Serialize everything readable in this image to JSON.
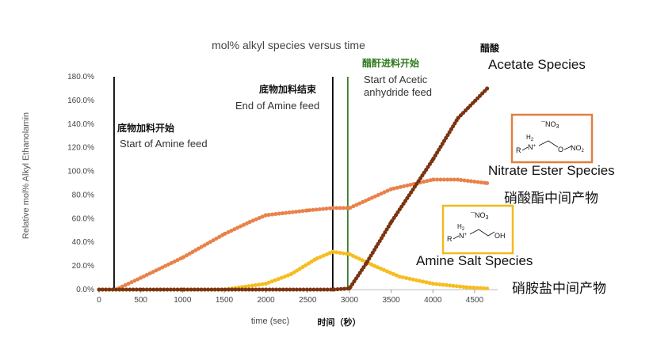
{
  "chart_data": {
    "type": "line",
    "title": "mol% alkyl species versus time",
    "xlabel": "time (sec)",
    "xlabel_zh": "时间（秒）",
    "ylabel": "Relative mol% Alkyl Ethanolamin",
    "xlim": [
      0,
      4700
    ],
    "ylim": [
      0,
      180
    ],
    "x_ticks": [
      "0",
      "500",
      "1000",
      "1500",
      "2000",
      "2500",
      "3000",
      "3500",
      "4000",
      "4500"
    ],
    "y_ticks": [
      "0.0%",
      "20.0%",
      "40.0%",
      "60.0%",
      "80.0%",
      "100.0%",
      "120.0%",
      "140.0%",
      "160.0%",
      "180.0%"
    ],
    "grid": false,
    "series": [
      {
        "name": "Nitrate Ester Species",
        "name_zh": "硝酸酯中间产物",
        "color": "#e8824a",
        "x": [
          0,
          200,
          500,
          1000,
          1500,
          1800,
          2000,
          2500,
          2800,
          3000,
          3500,
          4000,
          4300,
          4650
        ],
        "y": [
          0,
          0,
          10,
          27,
          47,
          57,
          63,
          67,
          69,
          69,
          85,
          93,
          93,
          90
        ]
      },
      {
        "name": "Amine Salt Species",
        "name_zh": "硝胺盐中间产物",
        "color": "#f5bd1f",
        "x": [
          0,
          1000,
          1500,
          2000,
          2300,
          2600,
          2800,
          3000,
          3300,
          3600,
          4000,
          4400,
          4650
        ],
        "y": [
          0,
          0,
          0,
          5,
          13,
          26,
          32,
          30,
          20,
          11,
          5,
          2,
          1
        ]
      },
      {
        "name": "Acetate Species",
        "name_zh": "醋酸",
        "color": "#7a3410",
        "x": [
          0,
          500,
          1000,
          2000,
          2800,
          3000,
          3200,
          3500,
          4000,
          4300,
          4650
        ],
        "y": [
          0,
          0,
          0,
          0,
          0,
          1,
          22,
          57,
          110,
          145,
          170
        ]
      }
    ],
    "vlines": [
      {
        "x": 180,
        "color": "#000000",
        "label": "Start of Amine feed",
        "label_zh": "底物加料开始"
      },
      {
        "x": 2800,
        "color": "#000000",
        "label": "End of Amine feed",
        "label_zh": "底物加料结束"
      },
      {
        "x": 2980,
        "color": "#3a7a2a",
        "label": "Start of Acetic anhydride feed",
        "label_zh": "醋酐进料开始"
      }
    ],
    "annotations": {
      "start_feed_zh": "底物加料开始",
      "start_feed": "Start of Amine feed",
      "end_feed_zh": "底物加料结束",
      "end_feed": "End of Amine feed",
      "acetic_zh": "醋酐进料开始",
      "acetic_line1": "Start of Acetic",
      "acetic_line2": "anhydride feed",
      "acetate_zh": "醋酸",
      "acetate": "Acetate Species",
      "nitrate": "Nitrate Ester Species",
      "nitrate_zh": "硝酸酯中间产物",
      "amine_salt": "Amine Salt Species",
      "amine_salt_zh": "硝胺盐中间产物"
    },
    "structures": {
      "ester": {
        "counter_ion": "¯NO3",
        "formula": "R–N+H2–CH2CH2–O–NO2",
        "border": "#e0803f"
      },
      "salt": {
        "counter_ion": "¯NO3",
        "formula": "R–N+H2–CH2CH2–OH",
        "border": "#f2b91e"
      }
    }
  }
}
